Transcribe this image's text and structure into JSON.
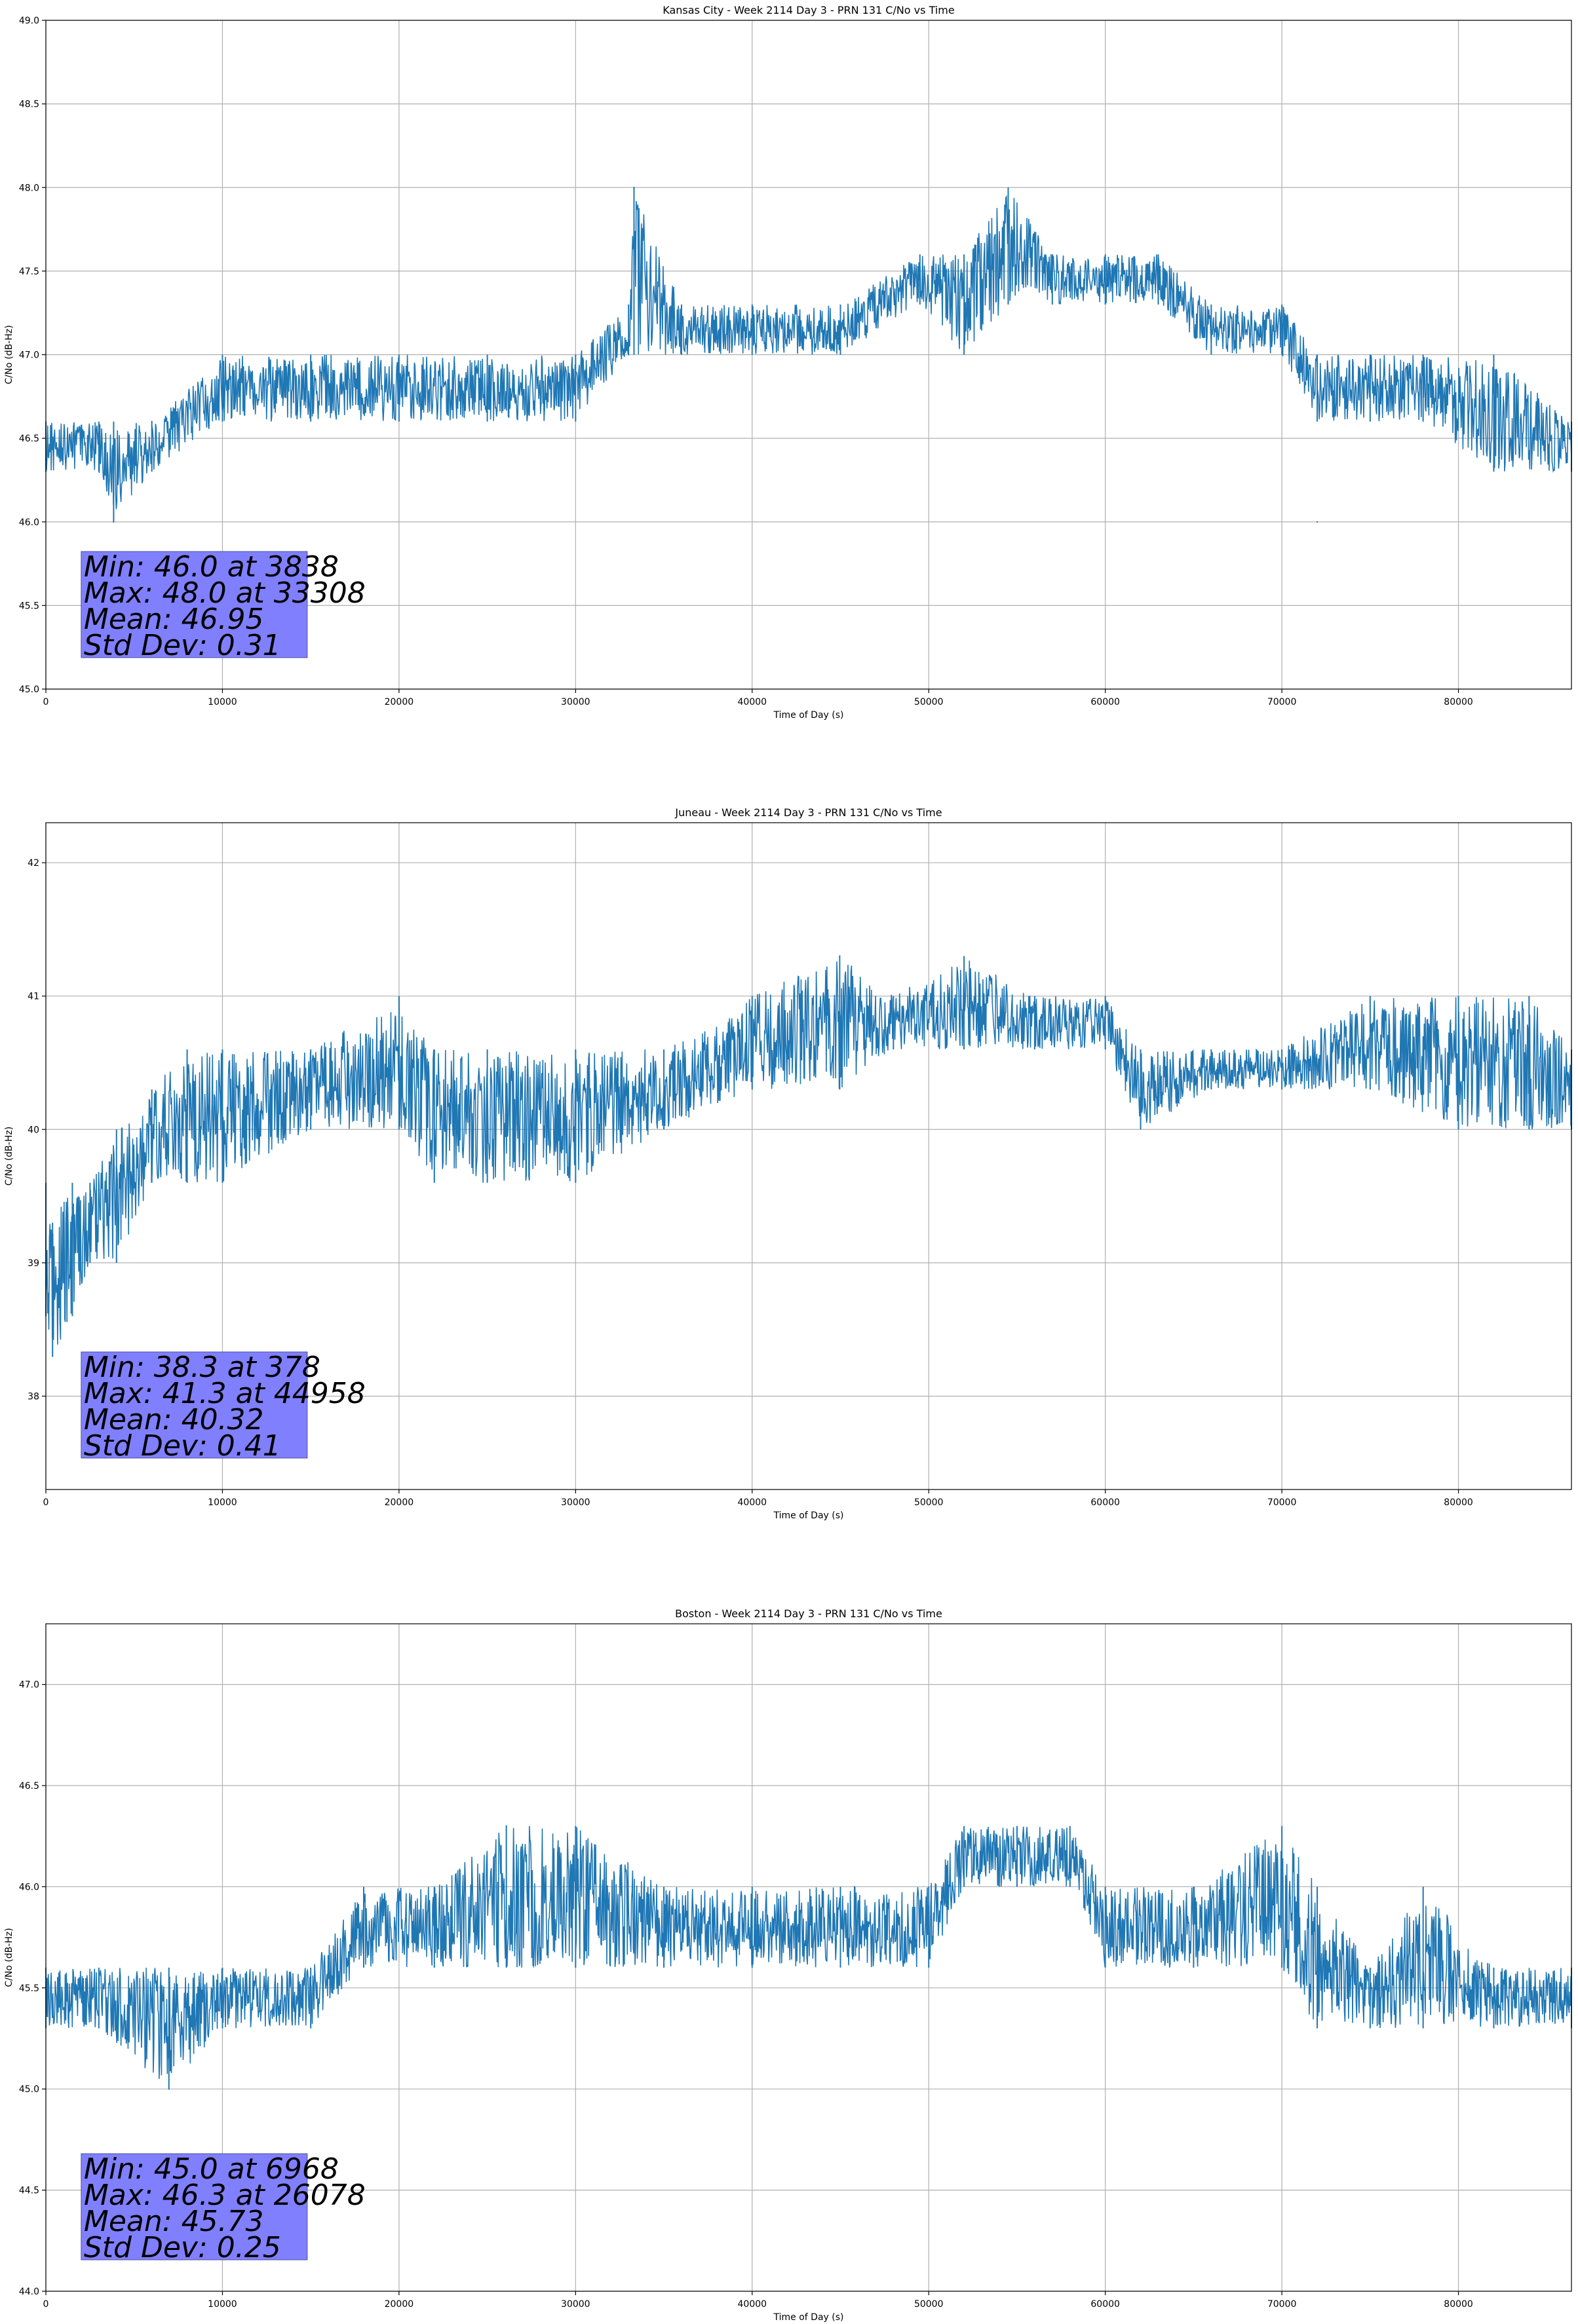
{
  "chart_data": [
    {
      "type": "line",
      "title": "Kansas City - Week 2114 Day 3 - PRN 131 C/No vs Time",
      "xlabel": "Time of Day (s)",
      "ylabel": "C/No (dB-Hz)",
      "xlim": [
        0,
        86400
      ],
      "ylim": [
        45.0,
        49.0
      ],
      "xticks": [
        0,
        10000,
        20000,
        30000,
        40000,
        50000,
        60000,
        70000,
        80000
      ],
      "yticks": [
        45.0,
        45.5,
        46.0,
        46.5,
        47.0,
        47.5,
        48.0,
        48.5,
        49.0
      ],
      "ytick_labels": [
        "45.0",
        "45.5",
        "46.0",
        "46.5",
        "47.0",
        "47.5",
        "48.0",
        "48.5",
        "49.0"
      ],
      "grid": true,
      "color": "#1f77b4",
      "series": [
        {
          "name": "",
          "x": [
            0,
            3000,
            3838,
            6000,
            10000,
            15000,
            20000,
            25000,
            30000,
            33000,
            33308,
            36000,
            40000,
            45000,
            49500,
            52000,
            54500,
            57000,
            60000,
            63000,
            66000,
            70000,
            72000,
            75000,
            78000,
            82000,
            86400
          ],
          "y": [
            46.45,
            46.5,
            46.0,
            46.6,
            46.75,
            46.8,
            46.8,
            46.8,
            46.8,
            47.0,
            48.0,
            47.15,
            47.15,
            47.15,
            47.45,
            47.3,
            47.6,
            47.45,
            47.45,
            47.45,
            47.15,
            47.15,
            46.0,
            46.8,
            46.8,
            46.5,
            46.45
          ],
          "band_low": [
            46.3,
            46.3,
            46.0,
            46.3,
            46.6,
            46.6,
            46.6,
            46.6,
            46.6,
            47.0,
            47.0,
            47.0,
            47.0,
            47.0,
            47.3,
            47.0,
            47.3,
            47.3,
            47.3,
            47.3,
            47.0,
            47.0,
            46.6,
            46.6,
            46.6,
            46.3,
            46.3
          ],
          "band_high": [
            46.6,
            46.6,
            46.6,
            46.6,
            47.0,
            47.0,
            47.0,
            47.0,
            47.0,
            47.3,
            48.0,
            47.3,
            47.3,
            47.3,
            47.6,
            47.6,
            48.0,
            47.6,
            47.6,
            47.6,
            47.3,
            47.3,
            47.0,
            47.0,
            47.0,
            47.0,
            46.6
          ]
        }
      ],
      "stats_lines": [
        "Min: 46.0 at 3838",
        "Max: 48.0 at 33308",
        "Mean: 46.95",
        "Std Dev: 0.31"
      ]
    },
    {
      "type": "line",
      "title": "Juneau - Week 2114 Day 3 - PRN 131 C/No vs Time",
      "xlabel": "Time of Day (s)",
      "ylabel": "C/No (dB-Hz)",
      "xlim": [
        0,
        86400
      ],
      "ylim": [
        37.3,
        42.3
      ],
      "xticks": [
        0,
        10000,
        20000,
        30000,
        40000,
        50000,
        60000,
        70000,
        80000
      ],
      "yticks": [
        38,
        39,
        40,
        41,
        42
      ],
      "ytick_labels": [
        "38",
        "39",
        "40",
        "41",
        "42"
      ],
      "grid": true,
      "color": "#1f77b4",
      "series": [
        {
          "name": "",
          "x": [
            0,
            378,
            1500,
            2500,
            4000,
            6000,
            8000,
            10000,
            15000,
            20000,
            22000,
            25000,
            30000,
            35000,
            40000,
            44958,
            48000,
            52000,
            56000,
            60000,
            62000,
            66000,
            70000,
            75000,
            80000,
            84000,
            86400
          ],
          "y": [
            38.9,
            38.3,
            38.9,
            39.3,
            39.5,
            39.8,
            40.1,
            40.15,
            40.35,
            40.4,
            40.2,
            40.15,
            40.15,
            40.3,
            40.45,
            41.3,
            40.8,
            40.8,
            40.8,
            40.8,
            40.45,
            40.45,
            40.45,
            40.45,
            40.45,
            40.45,
            40.3
          ],
          "band_low": [
            38.6,
            38.3,
            38.6,
            39.0,
            39.0,
            39.6,
            39.6,
            39.6,
            40.0,
            40.0,
            39.6,
            39.6,
            39.6,
            40.0,
            40.3,
            40.3,
            40.6,
            40.6,
            40.6,
            40.6,
            40.0,
            40.3,
            40.3,
            40.3,
            40.0,
            40.0,
            40.0
          ],
          "band_high": [
            39.6,
            39.3,
            39.6,
            39.6,
            40.0,
            40.3,
            40.6,
            40.6,
            40.6,
            41.0,
            40.6,
            40.6,
            40.6,
            40.6,
            41.0,
            41.3,
            41.0,
            41.3,
            41.0,
            41.0,
            40.6,
            40.6,
            40.6,
            41.0,
            41.0,
            41.0,
            40.6
          ]
        }
      ],
      "stats_lines": [
        "Min: 38.3 at 378",
        "Max: 41.3 at 44958",
        "Mean: 40.32",
        "Std Dev: 0.41"
      ]
    },
    {
      "type": "line",
      "title": "Boston - Week 2114 Day 3 - PRN 131 C/No vs Time",
      "xlabel": "Time of Day (s)",
      "ylabel": "C/No (dB-Hz)",
      "xlim": [
        0,
        86400
      ],
      "ylim": [
        44.0,
        47.3
      ],
      "xticks": [
        0,
        10000,
        20000,
        30000,
        40000,
        50000,
        60000,
        70000,
        80000
      ],
      "yticks": [
        44.0,
        44.5,
        45.0,
        45.5,
        46.0,
        46.5,
        47.0
      ],
      "ytick_labels": [
        "44.0",
        "44.5",
        "45.0",
        "45.5",
        "46.0",
        "46.5",
        "47.0"
      ],
      "grid": true,
      "color": "#1f77b4",
      "series": [
        {
          "name": "",
          "x": [
            0,
            3000,
            6968,
            10000,
            15000,
            18000,
            22000,
            26078,
            30000,
            35000,
            40000,
            45000,
            50000,
            52000,
            55000,
            58000,
            60000,
            65000,
            70000,
            72000,
            75000,
            78000,
            82000,
            86400
          ],
          "y": [
            45.55,
            45.5,
            45.0,
            45.5,
            45.5,
            45.7,
            45.8,
            46.3,
            45.85,
            45.8,
            45.8,
            45.8,
            45.85,
            46.15,
            46.15,
            46.15,
            45.85,
            45.85,
            45.85,
            45.8,
            45.5,
            45.5,
            45.45,
            45.45
          ],
          "band_low": [
            45.3,
            45.3,
            45.0,
            45.3,
            45.3,
            45.6,
            45.6,
            45.6,
            45.6,
            45.6,
            45.6,
            45.6,
            45.6,
            46.0,
            46.0,
            46.0,
            45.6,
            45.6,
            45.6,
            45.3,
            45.3,
            45.3,
            45.3,
            45.3
          ],
          "band_high": [
            45.6,
            45.6,
            45.6,
            45.6,
            45.6,
            46.0,
            46.0,
            46.3,
            46.3,
            46.0,
            46.0,
            46.0,
            46.0,
            46.3,
            46.3,
            46.3,
            46.0,
            46.0,
            46.3,
            46.0,
            45.6,
            46.0,
            45.6,
            45.6
          ]
        }
      ],
      "stats_lines": [
        "Min: 45.0 at 6968",
        "Max: 46.3 at 26078",
        "Mean: 45.73",
        "Std Dev: 0.25"
      ]
    }
  ]
}
